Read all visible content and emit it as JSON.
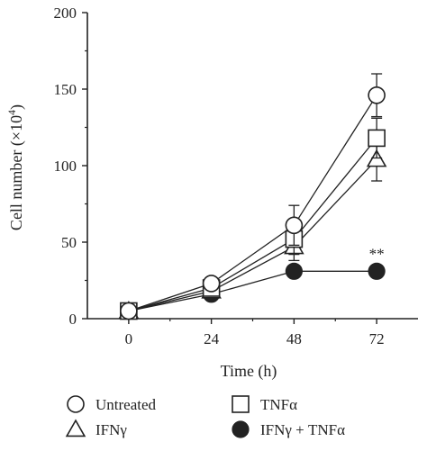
{
  "chart_data": {
    "type": "line",
    "xlabel": "Time (h)",
    "ylabel_text": "Cell number (×10",
    "ylabel_superscript": "4",
    "ylabel_close": ")",
    "x": [
      0,
      24,
      48,
      72
    ],
    "x_tick_labels": [
      "0",
      "24",
      "48",
      "72"
    ],
    "xlim": [
      -12,
      84
    ],
    "ylim": [
      0,
      200
    ],
    "y_ticks": [
      0,
      50,
      100,
      150,
      200
    ],
    "y_tick_labels": [
      "0",
      "50",
      "100",
      "150",
      "200"
    ],
    "grid": false,
    "legend_position": "bottom",
    "color": "#222222",
    "series": [
      {
        "name": "Untreated",
        "marker": "circle-open",
        "values": [
          5,
          23,
          61,
          146
        ],
        "errors": [
          0,
          2,
          13,
          14
        ]
      },
      {
        "name": "TNFα",
        "marker": "square-open",
        "values": [
          5,
          20,
          52,
          118
        ],
        "errors": [
          0,
          2,
          10,
          13
        ]
      },
      {
        "name": "IFNγ",
        "marker": "triangle-open",
        "values": [
          5,
          18,
          47,
          104
        ],
        "errors": [
          0,
          2,
          9,
          14
        ]
      },
      {
        "name": "IFNγ + TNFα",
        "marker": "circle-filled",
        "values": [
          5,
          16,
          31,
          31
        ],
        "errors": [
          0,
          2,
          2,
          2
        ]
      }
    ],
    "legend_order": [
      0,
      1,
      2,
      3
    ],
    "annotations": [
      {
        "text": "**",
        "x": 72,
        "y": 31
      }
    ]
  }
}
